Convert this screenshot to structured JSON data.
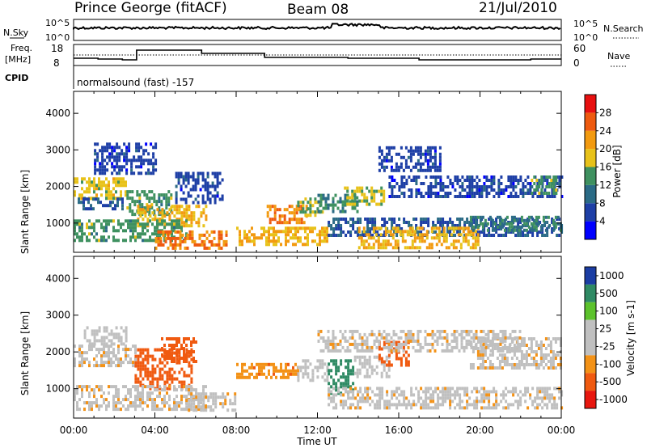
{
  "header": {
    "station": "Prince George (fitACF)",
    "beam": "Beam 08",
    "date": "21/Jul/2010"
  },
  "top_panels": {
    "nsky_label": "N.Sky",
    "nsky_ticks": [
      "10^5",
      "10^0"
    ],
    "nsearch_label": "N.Search",
    "nsearch_ticks": [
      "10^5",
      "10^0"
    ],
    "freq_label_1": "Freq.",
    "freq_label_2": "[MHz]",
    "freq_ticks": [
      "18",
      "8"
    ],
    "nave_label": "Nave",
    "nave_ticks": [
      "60",
      "0"
    ],
    "cpid_label": "CPID",
    "cpid_text": "normalsound (fast) -157"
  },
  "colors": {
    "power_scale": [
      "#0000ff",
      "#1e3fa6",
      "#2b6b86",
      "#3f9160",
      "#e8c21a",
      "#f29a10",
      "#ee5a0f",
      "#e81010"
    ],
    "velocity_scale": [
      "#e8170f",
      "#f05a10",
      "#f39217",
      "#c0c0c0",
      "#c0c0c0",
      "#5cc22c",
      "#2f8a64",
      "#1b3da3"
    ]
  },
  "chart_data": [
    {
      "type": "heatmap",
      "name": "power-panel",
      "ylabel": "Slant Range [km]",
      "yticks": [
        "1000",
        "2000",
        "3000",
        "4000"
      ],
      "ylim": [
        200,
        4600
      ],
      "xlim": [
        0,
        24
      ],
      "colorbar": {
        "label": "Power [dB]",
        "ticks": [
          "4",
          "8",
          "12",
          "16",
          "20",
          "24",
          "28"
        ],
        "range": [
          0,
          32
        ]
      },
      "regions": [
        {
          "t0": 0.0,
          "t1": 2.6,
          "r0": 1650,
          "r1": 2250,
          "level": 18
        },
        {
          "t0": 0.2,
          "t1": 2.4,
          "r0": 1400,
          "r1": 1700,
          "level": 8
        },
        {
          "t0": 1.0,
          "t1": 4.0,
          "r0": 2400,
          "r1": 3200,
          "level": 6
        },
        {
          "t0": 2.6,
          "t1": 4.8,
          "r0": 1200,
          "r1": 1900,
          "level": 14
        },
        {
          "t0": 3.0,
          "t1": 6.5,
          "r0": 900,
          "r1": 1500,
          "level": 20
        },
        {
          "t0": 0.0,
          "t1": 5.5,
          "r0": 500,
          "r1": 1100,
          "level": 14
        },
        {
          "t0": 4.0,
          "t1": 7.5,
          "r0": 350,
          "r1": 800,
          "level": 24
        },
        {
          "t0": 5.0,
          "t1": 7.3,
          "r0": 1600,
          "r1": 2400,
          "level": 6
        },
        {
          "t0": 8.0,
          "t1": 12.5,
          "r0": 400,
          "r1": 900,
          "level": 20
        },
        {
          "t0": 9.5,
          "t1": 11.5,
          "r0": 1000,
          "r1": 1500,
          "level": 24
        },
        {
          "t0": 11.0,
          "t1": 12.3,
          "r0": 1200,
          "r1": 1700,
          "level": 16
        },
        {
          "t0": 12.0,
          "t1": 14.0,
          "r0": 1300,
          "r1": 1800,
          "level": 12
        },
        {
          "t0": 13.3,
          "t1": 15.3,
          "r0": 1500,
          "r1": 2000,
          "level": 16
        },
        {
          "t0": 12.5,
          "t1": 24.0,
          "r0": 650,
          "r1": 1150,
          "level": 8
        },
        {
          "t0": 14.0,
          "t1": 20.0,
          "r0": 350,
          "r1": 900,
          "level": 20
        },
        {
          "t0": 15.5,
          "t1": 24.0,
          "r0": 1700,
          "r1": 2300,
          "level": 6
        },
        {
          "t0": 19.5,
          "t1": 24.0,
          "r0": 800,
          "r1": 1200,
          "level": 12
        },
        {
          "t0": 22.5,
          "t1": 23.8,
          "r0": 1800,
          "r1": 2300,
          "level": 14
        },
        {
          "t0": 15.0,
          "t1": 18.0,
          "r0": 2400,
          "r1": 3100,
          "level": 6
        }
      ]
    },
    {
      "type": "heatmap",
      "name": "velocity-panel",
      "ylabel": "Slant Range [km]",
      "yticks": [
        "1000",
        "2000",
        "3000",
        "4000"
      ],
      "ylim": [
        200,
        4600
      ],
      "xlim": [
        0,
        24
      ],
      "xlabel": "Time UT",
      "xticks": [
        "00:00",
        "04:00",
        "08:00",
        "12:00",
        "16:00",
        "20:00",
        "00:00"
      ],
      "colorbar": {
        "label": "Velocity [m s-1]",
        "ticks": [
          "1000",
          "500",
          "100",
          "25",
          "-25",
          "-100",
          "-500",
          "-1000"
        ],
        "range": [
          -1000,
          1000
        ]
      },
      "regions": [
        {
          "t0": 0.0,
          "t1": 3.0,
          "r0": 1600,
          "r1": 2200,
          "level": 0
        },
        {
          "t0": 0.5,
          "t1": 2.6,
          "r0": 2200,
          "r1": 2700,
          "level": 60
        },
        {
          "t0": 3.0,
          "t1": 5.8,
          "r0": 1000,
          "r1": 2100,
          "level": -200
        },
        {
          "t0": 4.3,
          "t1": 6.0,
          "r0": 1700,
          "r1": 2400,
          "level": -400
        },
        {
          "t0": 0.0,
          "t1": 6.5,
          "r0": 400,
          "r1": 1100,
          "level": 0
        },
        {
          "t0": 5.5,
          "t1": 8.0,
          "r0": 400,
          "r1": 900,
          "level": 0
        },
        {
          "t0": 8.0,
          "t1": 11.0,
          "r0": 1300,
          "r1": 1700,
          "level": -70
        },
        {
          "t0": 11.0,
          "t1": 12.5,
          "r0": 1200,
          "r1": 1800,
          "level": 60
        },
        {
          "t0": 12.5,
          "t1": 13.8,
          "r0": 900,
          "r1": 1800,
          "level": 700
        },
        {
          "t0": 13.8,
          "t1": 15.5,
          "r0": 1300,
          "r1": 1900,
          "level": 60
        },
        {
          "t0": 15.0,
          "t1": 16.5,
          "r0": 1600,
          "r1": 2300,
          "level": -150
        },
        {
          "t0": 12.5,
          "t1": 24.0,
          "r0": 450,
          "r1": 1050,
          "level": 0
        },
        {
          "t0": 19.5,
          "t1": 24.0,
          "r0": 1600,
          "r1": 2400,
          "level": 0
        },
        {
          "t0": 12.0,
          "t1": 22.0,
          "r0": 2000,
          "r1": 2600,
          "level": 0
        }
      ]
    }
  ]
}
